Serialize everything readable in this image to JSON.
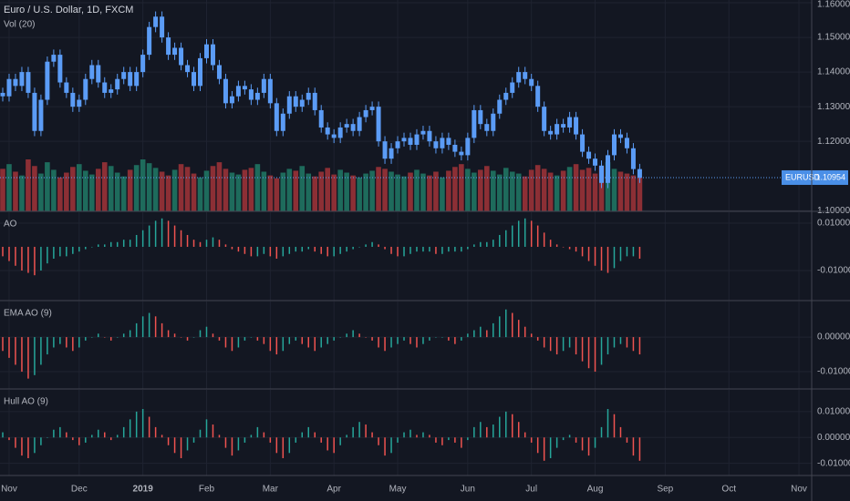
{
  "chart_data": [
    {
      "type": "candlestick",
      "title": "Euro / U.S. Dollar, 1D, FXCM",
      "subtitle": "Vol (20)",
      "symbol": "EURUSD",
      "last_price": 1.10954,
      "candle_color": "#5b9cf6",
      "volume_colors": {
        "up": "#1e6b5c",
        "down": "#8c2f35"
      },
      "grid": true,
      "ylim": [
        1.0998,
        1.1608
      ],
      "xlim": [
        0,
        127
      ],
      "yticks": [
        {
          "value": 1.16,
          "label": "1.16000"
        },
        {
          "value": 1.15,
          "label": "1.15000"
        },
        {
          "value": 1.14,
          "label": "1.14000"
        },
        {
          "value": 1.13,
          "label": "1.13000"
        },
        {
          "value": 1.12,
          "label": "1.12000"
        },
        {
          "value": 1.1,
          "label": "1.10000"
        }
      ],
      "xticks": [
        {
          "value": 1,
          "label": "Nov"
        },
        {
          "value": 12,
          "label": "Dec"
        },
        {
          "value": 22,
          "label": "2019"
        },
        {
          "value": 32,
          "label": "Feb"
        },
        {
          "value": 42,
          "label": "Mar"
        },
        {
          "value": 52,
          "label": "Apr"
        },
        {
          "value": 62,
          "label": "May"
        },
        {
          "value": 73,
          "label": "Jun"
        },
        {
          "value": 83,
          "label": "Jul"
        },
        {
          "value": 93,
          "label": "Aug"
        },
        {
          "value": 104,
          "label": "Sep"
        },
        {
          "value": 114,
          "label": "Oct"
        },
        {
          "value": 125,
          "label": "Nov"
        }
      ],
      "open": [
        1.134,
        1.133,
        1.138,
        1.136,
        1.14,
        1.134,
        1.123,
        1.132,
        1.143,
        1.145,
        1.137,
        1.134,
        1.13,
        1.132,
        1.138,
        1.142,
        1.137,
        1.134,
        1.135,
        1.138,
        1.14,
        1.136,
        1.14,
        1.145,
        1.153,
        1.156,
        1.15,
        1.145,
        1.147,
        1.142,
        1.14,
        1.136,
        1.144,
        1.148,
        1.142,
        1.138,
        1.131,
        1.133,
        1.136,
        1.135,
        1.132,
        1.134,
        1.138,
        1.131,
        1.123,
        1.128,
        1.133,
        1.13,
        1.132,
        1.134,
        1.129,
        1.124,
        1.122,
        1.121,
        1.124,
        1.125,
        1.123,
        1.127,
        1.129,
        1.13,
        1.12,
        1.115,
        1.118,
        1.12,
        1.121,
        1.119,
        1.122,
        1.123,
        1.12,
        1.118,
        1.121,
        1.119,
        1.117,
        1.116,
        1.121,
        1.129,
        1.125,
        1.123,
        1.128,
        1.132,
        1.134,
        1.137,
        1.14,
        1.138,
        1.136,
        1.13,
        1.123,
        1.122,
        1.125,
        1.124,
        1.127,
        1.122,
        1.117,
        1.115,
        1.113,
        1.108,
        1.116,
        1.122,
        1.121,
        1.118,
        1.112
      ],
      "high": [
        1.1355,
        1.1395,
        1.1395,
        1.1415,
        1.1415,
        1.1355,
        1.1335,
        1.1445,
        1.1465,
        1.1465,
        1.1385,
        1.1355,
        1.1335,
        1.1395,
        1.1435,
        1.1435,
        1.1385,
        1.1365,
        1.1395,
        1.1415,
        1.1415,
        1.1415,
        1.1465,
        1.1545,
        1.1575,
        1.1575,
        1.1515,
        1.1485,
        1.1485,
        1.1435,
        1.1415,
        1.1455,
        1.1495,
        1.1495,
        1.1435,
        1.1395,
        1.1345,
        1.1375,
        1.1375,
        1.1365,
        1.1355,
        1.1395,
        1.1395,
        1.1325,
        1.1295,
        1.1345,
        1.1345,
        1.1335,
        1.1355,
        1.1355,
        1.1305,
        1.1255,
        1.1235,
        1.1255,
        1.1265,
        1.1265,
        1.1285,
        1.1305,
        1.1315,
        1.1315,
        1.1215,
        1.1195,
        1.1215,
        1.1225,
        1.1225,
        1.1235,
        1.1245,
        1.1245,
        1.1215,
        1.1225,
        1.1225,
        1.1205,
        1.1185,
        1.1225,
        1.1305,
        1.1305,
        1.1265,
        1.1295,
        1.1335,
        1.1355,
        1.1385,
        1.1415,
        1.1415,
        1.1395,
        1.1375,
        1.1315,
        1.1245,
        1.1265,
        1.1265,
        1.1285,
        1.1285,
        1.1235,
        1.1185,
        1.1165,
        1.1145,
        1.1175,
        1.1235,
        1.1235,
        1.1225,
        1.1195,
        1.1135
      ],
      "low": [
        1.1315,
        1.1315,
        1.1345,
        1.1345,
        1.1325,
        1.1215,
        1.1215,
        1.1305,
        1.1415,
        1.1355,
        1.1325,
        1.1285,
        1.1285,
        1.1305,
        1.1365,
        1.1355,
        1.1325,
        1.1325,
        1.1335,
        1.1365,
        1.1345,
        1.1345,
        1.1385,
        1.1435,
        1.1515,
        1.1485,
        1.1435,
        1.1435,
        1.1405,
        1.1385,
        1.1345,
        1.1345,
        1.1425,
        1.1405,
        1.1365,
        1.1295,
        1.1295,
        1.1315,
        1.1335,
        1.1305,
        1.1305,
        1.1325,
        1.1295,
        1.1215,
        1.1215,
        1.1265,
        1.1285,
        1.1285,
        1.1305,
        1.1275,
        1.1225,
        1.1205,
        1.1195,
        1.1195,
        1.1225,
        1.1215,
        1.1215,
        1.1255,
        1.1275,
        1.1185,
        1.1135,
        1.1135,
        1.1165,
        1.1185,
        1.1175,
        1.1175,
        1.1205,
        1.1185,
        1.1165,
        1.1165,
        1.1175,
        1.1155,
        1.1145,
        1.1145,
        1.1195,
        1.1235,
        1.1215,
        1.1215,
        1.1265,
        1.1305,
        1.1325,
        1.1355,
        1.1365,
        1.1345,
        1.1285,
        1.1215,
        1.1205,
        1.1205,
        1.1225,
        1.1225,
        1.1205,
        1.1155,
        1.1135,
        1.1115,
        1.1065,
        1.1065,
        1.1145,
        1.1195,
        1.1165,
        1.1105,
        1.108
      ],
      "close": [
        1.133,
        1.138,
        1.136,
        1.14,
        1.134,
        1.123,
        1.132,
        1.143,
        1.145,
        1.137,
        1.134,
        1.13,
        1.132,
        1.138,
        1.142,
        1.137,
        1.134,
        1.135,
        1.138,
        1.14,
        1.136,
        1.14,
        1.145,
        1.153,
        1.156,
        1.15,
        1.145,
        1.147,
        1.142,
        1.14,
        1.136,
        1.144,
        1.148,
        1.142,
        1.138,
        1.131,
        1.133,
        1.136,
        1.135,
        1.132,
        1.134,
        1.138,
        1.131,
        1.123,
        1.128,
        1.133,
        1.13,
        1.132,
        1.134,
        1.129,
        1.124,
        1.122,
        1.121,
        1.124,
        1.125,
        1.123,
        1.127,
        1.129,
        1.13,
        1.12,
        1.115,
        1.118,
        1.12,
        1.121,
        1.119,
        1.122,
        1.123,
        1.12,
        1.118,
        1.121,
        1.119,
        1.117,
        1.116,
        1.121,
        1.129,
        1.125,
        1.123,
        1.128,
        1.132,
        1.134,
        1.137,
        1.14,
        1.138,
        1.136,
        1.13,
        1.123,
        1.122,
        1.125,
        1.124,
        1.127,
        1.122,
        1.117,
        1.115,
        1.113,
        1.108,
        1.116,
        1.122,
        1.121,
        1.118,
        1.112,
        1.1095
      ],
      "volume": [
        45,
        50,
        42,
        38,
        55,
        48,
        40,
        52,
        44,
        36,
        41,
        47,
        50,
        43,
        39,
        45,
        52,
        48,
        41,
        37,
        44,
        49,
        55,
        51,
        46,
        42,
        38,
        44,
        50,
        47,
        40,
        36,
        43,
        48,
        52,
        45,
        41,
        39,
        44,
        46,
        50,
        42,
        38,
        35,
        41,
        45,
        43,
        48,
        40,
        37,
        42,
        46,
        39,
        44,
        41,
        38,
        36,
        40,
        43,
        47,
        45,
        42,
        39,
        37,
        41,
        44,
        40,
        38,
        42,
        36,
        43,
        47,
        50,
        45,
        41,
        44,
        48,
        43,
        39,
        46,
        42,
        40,
        37,
        44,
        49,
        45,
        41,
        38,
        43,
        47,
        50,
        44,
        46,
        40,
        48,
        52,
        45,
        42,
        40,
        38,
        36
      ]
    },
    {
      "type": "histogram",
      "title": "AO",
      "colors": {
        "up": "#26a69a",
        "down": "#ef5350"
      },
      "ylim": [
        -0.0227,
        0.0146
      ],
      "yticks": [
        {
          "value": 0.01,
          "label": "0.01000"
        },
        {
          "value": -0.01,
          "label": "-0.01000"
        }
      ],
      "values": [
        -0.004,
        -0.006,
        -0.008,
        -0.01,
        -0.011,
        -0.012,
        -0.01,
        -0.007,
        -0.005,
        -0.004,
        -0.004,
        -0.003,
        -0.002,
        -0.001,
        0,
        0.001,
        0.001,
        0.002,
        0.002,
        0.003,
        0.003,
        0.005,
        0.007,
        0.009,
        0.011,
        0.012,
        0.011,
        0.009,
        0.007,
        0.005,
        0.003,
        0.002,
        0.003,
        0.004,
        0.003,
        0.001,
        -0.001,
        -0.002,
        -0.003,
        -0.004,
        -0.004,
        -0.003,
        -0.004,
        -0.005,
        -0.004,
        -0.003,
        -0.002,
        -0.002,
        -0.001,
        -0.002,
        -0.003,
        -0.004,
        -0.004,
        -0.003,
        -0.002,
        -0.001,
        0,
        0.001,
        0.002,
        0.001,
        -0.001,
        -0.003,
        -0.004,
        -0.004,
        -0.003,
        -0.002,
        -0.002,
        -0.002,
        -0.003,
        -0.003,
        -0.002,
        -0.002,
        -0.002,
        -0.001,
        0.001,
        0.002,
        0.002,
        0.003,
        0.005,
        0.007,
        0.009,
        0.011,
        0.012,
        0.011,
        0.009,
        0.006,
        0.003,
        0.001,
        0,
        -0.001,
        -0.002,
        -0.004,
        -0.006,
        -0.008,
        -0.01,
        -0.011,
        -0.009,
        -0.006,
        -0.004,
        -0.004,
        -0.005
      ]
    },
    {
      "type": "histogram",
      "title": "EMA AO (9)",
      "colors": {
        "up": "#26a69a",
        "down": "#ef5350"
      },
      "ylim": [
        -0.015,
        0.0103
      ],
      "yticks": [
        {
          "value": 0,
          "label": "0.00000"
        },
        {
          "value": -0.01,
          "label": "-0.01000"
        }
      ],
      "values": [
        -0.004,
        -0.006,
        -0.008,
        -0.01,
        -0.012,
        -0.011,
        -0.008,
        -0.005,
        -0.003,
        -0.002,
        -0.003,
        -0.004,
        -0.003,
        -0.001,
        0,
        0.001,
        0,
        -0.001,
        0,
        0.001,
        0.002,
        0.004,
        0.006,
        0.007,
        0.006,
        0.004,
        0.002,
        0.001,
        0,
        -0.001,
        0,
        0.002,
        0.003,
        0.001,
        -0.001,
        -0.003,
        -0.004,
        -0.003,
        -0.001,
        0,
        -0.001,
        -0.002,
        -0.004,
        -0.005,
        -0.004,
        -0.002,
        -0.001,
        -0.002,
        -0.003,
        -0.004,
        -0.003,
        -0.002,
        -0.001,
        0,
        0.001,
        0.002,
        0.001,
        0,
        -0.001,
        -0.003,
        -0.004,
        -0.003,
        -0.002,
        -0.001,
        -0.002,
        -0.003,
        -0.002,
        -0.001,
        0,
        0,
        -0.001,
        -0.002,
        -0.001,
        0.001,
        0.002,
        0.003,
        0.002,
        0.004,
        0.006,
        0.008,
        0.007,
        0.005,
        0.003,
        0.001,
        -0.001,
        -0.003,
        -0.004,
        -0.005,
        -0.004,
        -0.003,
        -0.005,
        -0.007,
        -0.009,
        -0.01,
        -0.008,
        -0.005,
        -0.003,
        -0.002,
        -0.003,
        -0.004,
        -0.005
      ]
    },
    {
      "type": "histogram",
      "title": "Hull AO (9)",
      "colors": {
        "up": "#26a69a",
        "down": "#ef5350"
      },
      "ylim": [
        -0.0147,
        0.0184
      ],
      "yticks": [
        {
          "value": 0.01,
          "label": "0.01000"
        },
        {
          "value": 0,
          "label": "0.00000"
        },
        {
          "value": -0.01,
          "label": "-0.01000"
        }
      ],
      "values": [
        0.002,
        -0.001,
        -0.004,
        -0.007,
        -0.008,
        -0.006,
        -0.003,
        0,
        0.003,
        0.004,
        0.002,
        -0.001,
        -0.003,
        -0.002,
        0.001,
        0.003,
        0.002,
        -0.001,
        0.001,
        0.004,
        0.007,
        0.01,
        0.011,
        0.008,
        0.004,
        0.001,
        -0.003,
        -0.006,
        -0.008,
        -0.005,
        -0.002,
        0.003,
        0.007,
        0.005,
        0.001,
        -0.004,
        -0.007,
        -0.005,
        -0.002,
        0.001,
        0.004,
        0.002,
        -0.002,
        -0.006,
        -0.008,
        -0.006,
        -0.002,
        0.002,
        0.004,
        0.002,
        -0.002,
        -0.005,
        -0.006,
        -0.003,
        0.001,
        0.004,
        0.006,
        0.005,
        0.002,
        -0.003,
        -0.007,
        -0.006,
        -0.002,
        0.002,
        0.003,
        0.001,
        0.002,
        0.001,
        -0.002,
        -0.003,
        -0.001,
        -0.002,
        -0.004,
        -0.001,
        0.004,
        0.006,
        0.004,
        0.005,
        0.008,
        0.01,
        0.009,
        0.006,
        0.002,
        -0.002,
        -0.006,
        -0.009,
        -0.008,
        -0.004,
        -0.001,
        0.001,
        -0.002,
        -0.005,
        -0.007,
        -0.004,
        0.004,
        0.011,
        0.009,
        0.004,
        -0.002,
        -0.007,
        -0.009
      ]
    }
  ]
}
